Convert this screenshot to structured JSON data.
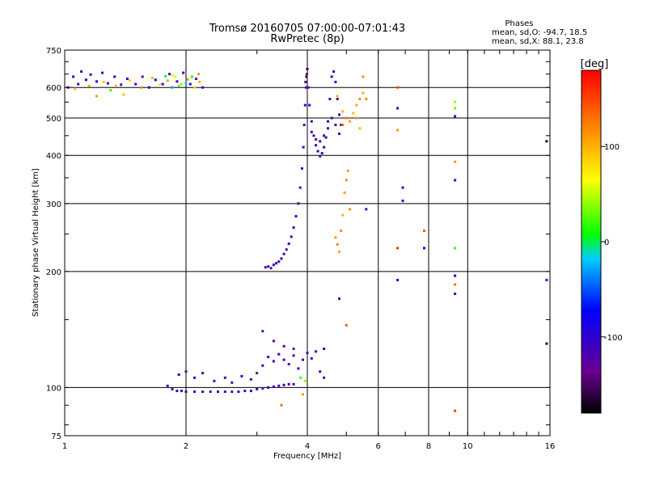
{
  "chart_data": {
    "type": "scatter",
    "title": "Tromsø 20160705 07:00:00-07:01:43",
    "subtitle": "RwPretec (8p)",
    "xlabel": "Frequency [MHz]",
    "ylabel": "Stationary phase Virtual Height [km]",
    "x_scale": "log",
    "y_scale": "log",
    "xlim": [
      1,
      16
    ],
    "ylim": [
      75,
      750
    ],
    "grid": true,
    "x_ticks": [
      {
        "value": 1,
        "label": "1"
      },
      {
        "value": 2,
        "label": "2"
      },
      {
        "value": 4,
        "label": "4"
      },
      {
        "value": 6,
        "label": "6"
      },
      {
        "value": 8,
        "label": "8"
      },
      {
        "value": 10,
        "label": "10"
      },
      {
        "value": 16,
        "label": "16"
      }
    ],
    "y_ticks": [
      {
        "value": 75,
        "label": "75"
      },
      {
        "value": 100,
        "label": "100"
      },
      {
        "value": 200,
        "label": "200"
      },
      {
        "value": 300,
        "label": "300"
      },
      {
        "value": 400,
        "label": "400"
      },
      {
        "value": 500,
        "label": "500"
      },
      {
        "value": 600,
        "label": "600"
      },
      {
        "value": 750,
        "label": "750"
      }
    ],
    "phases_box": {
      "title": "Phases",
      "line_o": "mean, sd,O: -94.7, 18.5",
      "line_x": "mean, sd,X:  88.1, 23.8"
    },
    "colorbar": {
      "label": "[deg]",
      "range": [
        -180,
        180
      ],
      "ticks": [
        {
          "value": 100,
          "label": "100"
        },
        {
          "value": 0,
          "label": "0"
        },
        {
          "value": -100,
          "label": "-100"
        }
      ]
    },
    "points": [
      {
        "f": 1.02,
        "h": 600,
        "p": -110
      },
      {
        "f": 1.05,
        "h": 640,
        "p": -115
      },
      {
        "f": 1.08,
        "h": 612,
        "p": -100
      },
      {
        "f": 1.1,
        "h": 660,
        "p": -120
      },
      {
        "f": 1.13,
        "h": 628,
        "p": -95
      },
      {
        "f": 1.16,
        "h": 648,
        "p": -110
      },
      {
        "f": 1.2,
        "h": 622,
        "p": -105
      },
      {
        "f": 1.24,
        "h": 655,
        "p": -90
      },
      {
        "f": 1.28,
        "h": 615,
        "p": -115
      },
      {
        "f": 1.33,
        "h": 640,
        "p": -100
      },
      {
        "f": 1.38,
        "h": 610,
        "p": -120
      },
      {
        "f": 1.43,
        "h": 632,
        "p": -95
      },
      {
        "f": 1.5,
        "h": 612,
        "p": -110
      },
      {
        "f": 1.56,
        "h": 640,
        "p": -130
      },
      {
        "f": 1.62,
        "h": 600,
        "p": -105
      },
      {
        "f": 1.68,
        "h": 628,
        "p": -85
      },
      {
        "f": 1.75,
        "h": 612,
        "p": -100
      },
      {
        "f": 1.82,
        "h": 650,
        "p": -115
      },
      {
        "f": 1.9,
        "h": 622,
        "p": -110
      },
      {
        "f": 1.97,
        "h": 655,
        "p": -95
      },
      {
        "f": 2.05,
        "h": 612,
        "p": -100
      },
      {
        "f": 2.12,
        "h": 632,
        "p": -120
      },
      {
        "f": 2.2,
        "h": 600,
        "p": -105
      },
      {
        "f": 1.06,
        "h": 595,
        "p": 95
      },
      {
        "f": 1.15,
        "h": 605,
        "p": 110
      },
      {
        "f": 1.25,
        "h": 620,
        "p": 90
      },
      {
        "f": 1.34,
        "h": 605,
        "p": 100
      },
      {
        "f": 1.45,
        "h": 625,
        "p": 85
      },
      {
        "f": 1.55,
        "h": 600,
        "p": 120
      },
      {
        "f": 1.65,
        "h": 635,
        "p": 95
      },
      {
        "f": 1.72,
        "h": 610,
        "p": 70
      },
      {
        "f": 1.8,
        "h": 625,
        "p": 105
      },
      {
        "f": 1.88,
        "h": 640,
        "p": 60
      },
      {
        "f": 1.95,
        "h": 612,
        "p": 45
      },
      {
        "f": 2.02,
        "h": 630,
        "p": 110
      },
      {
        "f": 2.1,
        "h": 600,
        "p": 90
      },
      {
        "f": 2.16,
        "h": 620,
        "p": 100
      },
      {
        "f": 1.3,
        "h": 590,
        "p": 20
      },
      {
        "f": 1.78,
        "h": 642,
        "p": 0
      },
      {
        "f": 1.92,
        "h": 606,
        "p": 30
      },
      {
        "f": 2.07,
        "h": 640,
        "p": 10
      },
      {
        "f": 1.85,
        "h": 600,
        "p": -30
      },
      {
        "f": 2.0,
        "h": 615,
        "p": -20
      },
      {
        "f": 1.2,
        "h": 570,
        "p": 110
      },
      {
        "f": 1.4,
        "h": 575,
        "p": 95
      },
      {
        "f": 1.85,
        "h": 645,
        "p": 55
      },
      {
        "f": 2.15,
        "h": 650,
        "p": 115
      },
      {
        "f": 1.8,
        "h": 101,
        "p": -115
      },
      {
        "f": 1.85,
        "h": 99,
        "p": -120
      },
      {
        "f": 1.9,
        "h": 98,
        "p": -105
      },
      {
        "f": 1.95,
        "h": 98,
        "p": -110
      },
      {
        "f": 2.0,
        "h": 97.5,
        "p": -115
      },
      {
        "f": 2.1,
        "h": 97.5,
        "p": -100
      },
      {
        "f": 2.2,
        "h": 97.5,
        "p": -110
      },
      {
        "f": 2.3,
        "h": 97.5,
        "p": -120
      },
      {
        "f": 2.4,
        "h": 97.5,
        "p": -105
      },
      {
        "f": 2.5,
        "h": 97.5,
        "p": -115
      },
      {
        "f": 2.6,
        "h": 97.5,
        "p": -110
      },
      {
        "f": 2.7,
        "h": 97.5,
        "p": -100
      },
      {
        "f": 2.8,
        "h": 98,
        "p": -120
      },
      {
        "f": 2.9,
        "h": 98,
        "p": -110
      },
      {
        "f": 3.0,
        "h": 99,
        "p": -105
      },
      {
        "f": 3.1,
        "h": 99.5,
        "p": -115
      },
      {
        "f": 3.2,
        "h": 100,
        "p": -110
      },
      {
        "f": 3.3,
        "h": 100.5,
        "p": -100
      },
      {
        "f": 3.4,
        "h": 101,
        "p": -120
      },
      {
        "f": 3.5,
        "h": 101.5,
        "p": -110
      },
      {
        "f": 3.6,
        "h": 102,
        "p": -105
      },
      {
        "f": 3.7,
        "h": 102,
        "p": -115
      },
      {
        "f": 1.92,
        "h": 108,
        "p": -100
      },
      {
        "f": 2.0,
        "h": 110,
        "p": -135
      },
      {
        "f": 2.1,
        "h": 106,
        "p": -110
      },
      {
        "f": 2.2,
        "h": 109,
        "p": -120
      },
      {
        "f": 2.35,
        "h": 104,
        "p": -105
      },
      {
        "f": 2.5,
        "h": 106,
        "p": -115
      },
      {
        "f": 2.6,
        "h": 103,
        "p": -110
      },
      {
        "f": 2.75,
        "h": 107,
        "p": -100
      },
      {
        "f": 2.9,
        "h": 105,
        "p": -120
      },
      {
        "f": 3.0,
        "h": 109,
        "p": -140
      },
      {
        "f": 3.1,
        "h": 114,
        "p": -110
      },
      {
        "f": 3.2,
        "h": 120,
        "p": -105
      },
      {
        "f": 3.3,
        "h": 117,
        "p": -115
      },
      {
        "f": 3.4,
        "h": 122,
        "p": -110
      },
      {
        "f": 3.5,
        "h": 118,
        "p": -100
      },
      {
        "f": 3.6,
        "h": 115,
        "p": -120
      },
      {
        "f": 3.7,
        "h": 121,
        "p": -110
      },
      {
        "f": 3.8,
        "h": 112,
        "p": -105
      },
      {
        "f": 3.9,
        "h": 118,
        "p": -115
      },
      {
        "f": 4.0,
        "h": 123,
        "p": -110
      },
      {
        "f": 4.1,
        "h": 119,
        "p": -100
      },
      {
        "f": 4.2,
        "h": 124,
        "p": -120
      },
      {
        "f": 4.3,
        "h": 110,
        "p": -105
      },
      {
        "f": 4.4,
        "h": 106,
        "p": -115
      },
      {
        "f": 3.3,
        "h": 132,
        "p": -135
      },
      {
        "f": 3.5,
        "h": 128,
        "p": -140
      },
      {
        "f": 3.7,
        "h": 126,
        "p": -130
      },
      {
        "f": 3.95,
        "h": 104,
        "p": 40
      },
      {
        "f": 3.85,
        "h": 106,
        "p": 20
      },
      {
        "f": 3.9,
        "h": 96,
        "p": 110
      },
      {
        "f": 3.45,
        "h": 90,
        "p": 130
      },
      {
        "f": 4.4,
        "h": 126,
        "p": -100
      },
      {
        "f": 3.1,
        "h": 140,
        "p": -130
      },
      {
        "f": 3.15,
        "h": 205,
        "p": -110
      },
      {
        "f": 3.2,
        "h": 206,
        "p": -115
      },
      {
        "f": 3.25,
        "h": 204,
        "p": -120
      },
      {
        "f": 3.3,
        "h": 208,
        "p": -105
      },
      {
        "f": 3.35,
        "h": 210,
        "p": -110
      },
      {
        "f": 3.4,
        "h": 212,
        "p": -115
      },
      {
        "f": 3.45,
        "h": 216,
        "p": -100
      },
      {
        "f": 3.5,
        "h": 222,
        "p": -110
      },
      {
        "f": 3.55,
        "h": 228,
        "p": -120
      },
      {
        "f": 3.6,
        "h": 236,
        "p": -105
      },
      {
        "f": 3.65,
        "h": 246,
        "p": -110
      },
      {
        "f": 3.7,
        "h": 260,
        "p": -115
      },
      {
        "f": 3.75,
        "h": 278,
        "p": -100
      },
      {
        "f": 3.8,
        "h": 300,
        "p": -110
      },
      {
        "f": 3.84,
        "h": 330,
        "p": -120
      },
      {
        "f": 3.88,
        "h": 370,
        "p": -105
      },
      {
        "f": 3.91,
        "h": 420,
        "p": -110
      },
      {
        "f": 3.93,
        "h": 480,
        "p": -115
      },
      {
        "f": 3.95,
        "h": 540,
        "p": -100
      },
      {
        "f": 3.97,
        "h": 600,
        "p": -110
      },
      {
        "f": 3.99,
        "h": 650,
        "p": -140
      },
      {
        "f": 4.0,
        "h": 670,
        "p": -155
      },
      {
        "f": 4.02,
        "h": 600,
        "p": -120
      },
      {
        "f": 4.05,
        "h": 540,
        "p": -105
      },
      {
        "f": 4.1,
        "h": 490,
        "p": -110
      },
      {
        "f": 4.15,
        "h": 450,
        "p": -115
      },
      {
        "f": 4.2,
        "h": 425,
        "p": -100
      },
      {
        "f": 4.25,
        "h": 410,
        "p": -110
      },
      {
        "f": 4.3,
        "h": 398,
        "p": -120
      },
      {
        "f": 4.35,
        "h": 405,
        "p": -105
      },
      {
        "f": 4.4,
        "h": 420,
        "p": -110
      },
      {
        "f": 4.45,
        "h": 445,
        "p": -115
      },
      {
        "f": 4.5,
        "h": 490,
        "p": -100
      },
      {
        "f": 4.55,
        "h": 560,
        "p": -110
      },
      {
        "f": 4.6,
        "h": 640,
        "p": -120
      },
      {
        "f": 4.65,
        "h": 660,
        "p": -105
      },
      {
        "f": 4.7,
        "h": 620,
        "p": -110
      },
      {
        "f": 4.75,
        "h": 560,
        "p": -115
      },
      {
        "f": 4.8,
        "h": 510,
        "p": -100
      },
      {
        "f": 4.85,
        "h": 480,
        "p": -110
      },
      {
        "f": 4.1,
        "h": 460,
        "p": -105
      },
      {
        "f": 4.2,
        "h": 440,
        "p": -120
      },
      {
        "f": 4.3,
        "h": 435,
        "p": -110
      },
      {
        "f": 4.4,
        "h": 450,
        "p": -100
      },
      {
        "f": 4.5,
        "h": 470,
        "p": -115
      },
      {
        "f": 4.6,
        "h": 500,
        "p": -110
      },
      {
        "f": 4.7,
        "h": 480,
        "p": -120
      },
      {
        "f": 4.8,
        "h": 455,
        "p": -105
      },
      {
        "f": 3.98,
        "h": 640,
        "p": -165
      },
      {
        "f": 3.96,
        "h": 620,
        "p": -150
      },
      {
        "f": 4.9,
        "h": 520,
        "p": 100
      },
      {
        "f": 5.0,
        "h": 500,
        "p": 120
      },
      {
        "f": 5.1,
        "h": 490,
        "p": 110
      },
      {
        "f": 5.2,
        "h": 515,
        "p": 95
      },
      {
        "f": 5.3,
        "h": 540,
        "p": 105
      },
      {
        "f": 5.4,
        "h": 560,
        "p": 115
      },
      {
        "f": 5.5,
        "h": 580,
        "p": 100
      },
      {
        "f": 5.6,
        "h": 560,
        "p": 120
      },
      {
        "f": 5.3,
        "h": 500,
        "p": 110
      },
      {
        "f": 5.4,
        "h": 470,
        "p": 95
      },
      {
        "f": 5.5,
        "h": 640,
        "p": 115
      },
      {
        "f": 4.9,
        "h": 480,
        "p": 125
      },
      {
        "f": 4.7,
        "h": 245,
        "p": 110
      },
      {
        "f": 4.75,
        "h": 235,
        "p": 120
      },
      {
        "f": 4.8,
        "h": 225,
        "p": 105
      },
      {
        "f": 4.85,
        "h": 255,
        "p": 115
      },
      {
        "f": 4.9,
        "h": 280,
        "p": 100
      },
      {
        "f": 4.95,
        "h": 320,
        "p": 110
      },
      {
        "f": 5.0,
        "h": 345,
        "p": 120
      },
      {
        "f": 5.05,
        "h": 365,
        "p": 105
      },
      {
        "f": 5.1,
        "h": 290,
        "p": 115
      },
      {
        "f": 4.75,
        "h": 570,
        "p": 100
      },
      {
        "f": 4.8,
        "h": 170,
        "p": -100
      },
      {
        "f": 5.0,
        "h": 145,
        "p": 140
      },
      {
        "f": 5.6,
        "h": 290,
        "p": -110
      },
      {
        "f": 6.7,
        "h": 600,
        "p": 150
      },
      {
        "f": 6.7,
        "h": 530,
        "p": -90
      },
      {
        "f": 6.7,
        "h": 465,
        "p": 110
      },
      {
        "f": 6.9,
        "h": 330,
        "p": -80
      },
      {
        "f": 6.9,
        "h": 305,
        "p": -70
      },
      {
        "f": 6.7,
        "h": 230,
        "p": 160
      },
      {
        "f": 6.7,
        "h": 190,
        "p": -85
      },
      {
        "f": 7.8,
        "h": 255,
        "p": 140
      },
      {
        "f": 7.8,
        "h": 230,
        "p": -100
      },
      {
        "f": 9.3,
        "h": 550,
        "p": 40
      },
      {
        "f": 9.3,
        "h": 530,
        "p": 30
      },
      {
        "f": 9.3,
        "h": 505,
        "p": -110
      },
      {
        "f": 9.3,
        "h": 385,
        "p": 110
      },
      {
        "f": 9.3,
        "h": 345,
        "p": -110
      },
      {
        "f": 9.3,
        "h": 230,
        "p": 20
      },
      {
        "f": 9.3,
        "h": 195,
        "p": -80
      },
      {
        "f": 9.3,
        "h": 185,
        "p": 130
      },
      {
        "f": 9.3,
        "h": 175,
        "p": -110
      },
      {
        "f": 9.3,
        "h": 87,
        "p": 150
      },
      {
        "f": 15.7,
        "h": 435,
        "p": -170
      },
      {
        "f": 15.7,
        "h": 190,
        "p": -110
      },
      {
        "f": 15.7,
        "h": 130,
        "p": -160
      }
    ]
  }
}
